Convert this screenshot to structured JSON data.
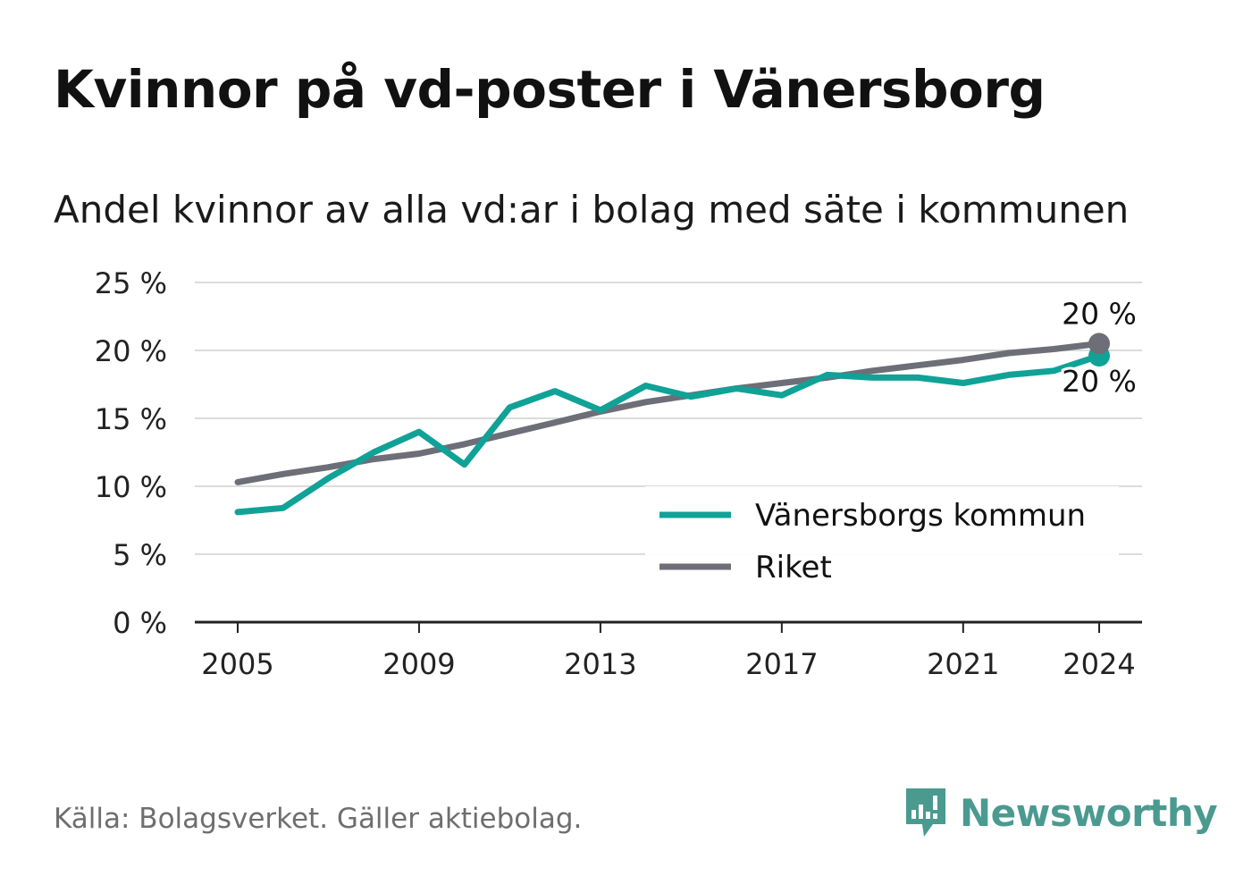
{
  "title": "Kvinnor på vd-poster i Vänersborg",
  "subtitle": "Andel kvinnor av alla vd:ar i bolag med säte i kommunen",
  "source": "Källa: Bolagsverket. Gäller aktiebolag.",
  "brand": {
    "name": "Newsworthy",
    "color": "#4a9a90"
  },
  "chart_data": {
    "type": "line",
    "ylim": [
      0,
      25
    ],
    "y_ticks": [
      "0 %",
      "5 %",
      "10 %",
      "15 %",
      "20 %",
      "25 %"
    ],
    "x_ticks": [
      "2005",
      "2009",
      "2013",
      "2017",
      "2021",
      "2024"
    ],
    "grid": true,
    "legend_position": "bottom-right",
    "x": [
      2005,
      2006,
      2007,
      2008,
      2009,
      2010,
      2011,
      2012,
      2013,
      2014,
      2015,
      2016,
      2017,
      2018,
      2019,
      2020,
      2021,
      2022,
      2023,
      2024
    ],
    "series": [
      {
        "name": "Vänersborgs kommun",
        "color": "#10a297",
        "values": [
          8.1,
          8.4,
          10.6,
          12.5,
          14.0,
          11.6,
          15.8,
          17.0,
          15.6,
          17.4,
          16.6,
          17.2,
          16.7,
          18.2,
          18.0,
          18.0,
          17.6,
          18.2,
          18.5,
          19.6
        ],
        "end_label": "20 %"
      },
      {
        "name": "Riket",
        "color": "#6e6e78",
        "values": [
          10.3,
          10.9,
          11.4,
          12.0,
          12.4,
          13.1,
          13.9,
          14.7,
          15.5,
          16.2,
          16.7,
          17.2,
          17.6,
          18.0,
          18.5,
          18.9,
          19.3,
          19.8,
          20.1,
          20.5
        ],
        "end_label": "20 %"
      }
    ]
  }
}
